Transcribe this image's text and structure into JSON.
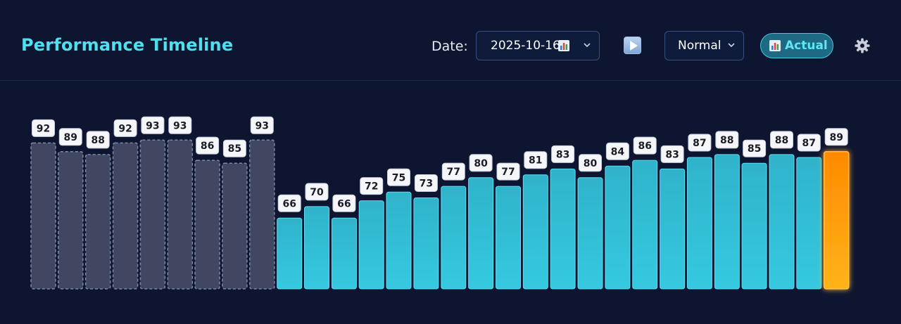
{
  "header": {
    "title": "Performance Timeline",
    "date_label": "Date:",
    "date_value": "2025-10-16",
    "speed_value": "Normal",
    "actual_label": "Actual"
  },
  "icons": {
    "date_chart": "bar-chart-icon",
    "play": "play-icon",
    "actual_chart": "bar-chart-icon",
    "settings": "gear-icon"
  },
  "colors": {
    "accent": "#4fe0f0",
    "past_bar": "#414760",
    "current_bar": "#2fbfd6",
    "highlight_bar": "#ff9c12"
  },
  "chart_data": {
    "type": "bar",
    "values": [
      92,
      89,
      88,
      92,
      93,
      93,
      86,
      85,
      93,
      66,
      70,
      66,
      72,
      75,
      73,
      77,
      80,
      77,
      81,
      83,
      80,
      84,
      86,
      83,
      87,
      88,
      85,
      88,
      87,
      89
    ],
    "groups": [
      "past",
      "past",
      "past",
      "past",
      "past",
      "past",
      "past",
      "past",
      "past",
      "current",
      "current",
      "current",
      "current",
      "current",
      "current",
      "current",
      "current",
      "current",
      "current",
      "current",
      "current",
      "current",
      "current",
      "current",
      "current",
      "current",
      "current",
      "current",
      "current",
      "highlight"
    ],
    "data_labels": true,
    "grid": false,
    "legend": "none"
  }
}
